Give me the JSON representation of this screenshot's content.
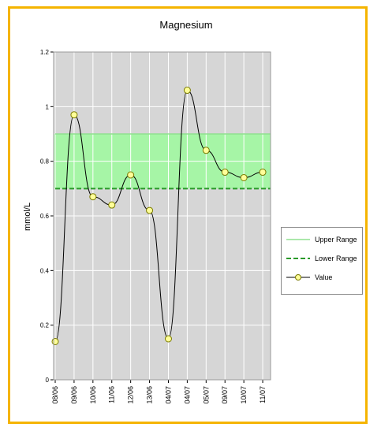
{
  "colors": {
    "accent_frame": "#f5b400",
    "plot_background": "#d6d6d6",
    "range_band": "#a6f5a6",
    "upper_range_line": "#8fe08f",
    "lower_range_line": "#2a9a2a",
    "value_line": "#000000",
    "marker_fill": "#ffff99",
    "marker_stroke": "#7a7a00"
  },
  "chart_data": {
    "type": "line",
    "title": "Magnesium",
    "xlabel": "",
    "ylabel": "mmol/L",
    "ylim": [
      0,
      1.2
    ],
    "yticks": [
      "0",
      "0.2",
      "0.4",
      "0.6",
      "0.8",
      "1",
      "1.2"
    ],
    "categories": [
      "08/06",
      "09/06",
      "10/06",
      "11/06",
      "12/06",
      "13/06",
      "04/07",
      "04/07",
      "05/07",
      "09/07",
      "10/07",
      "11/07"
    ],
    "series": [
      {
        "name": "Upper Range",
        "values": [
          0.9,
          0.9,
          0.9,
          0.9,
          0.9,
          0.9,
          0.9,
          0.9,
          0.9,
          0.9,
          0.9,
          0.9
        ]
      },
      {
        "name": "Lower Range",
        "values": [
          0.7,
          0.7,
          0.7,
          0.7,
          0.7,
          0.7,
          0.7,
          0.7,
          0.7,
          0.7,
          0.7,
          0.7
        ]
      },
      {
        "name": "Value",
        "values": [
          0.14,
          0.97,
          0.67,
          0.64,
          0.75,
          0.62,
          0.15,
          1.06,
          0.84,
          0.76,
          0.74,
          0.76
        ]
      }
    ],
    "grid": true,
    "legend_position": "right"
  },
  "legend": {
    "upper": "Upper Range",
    "lower": "Lower Range",
    "value": "Value"
  }
}
